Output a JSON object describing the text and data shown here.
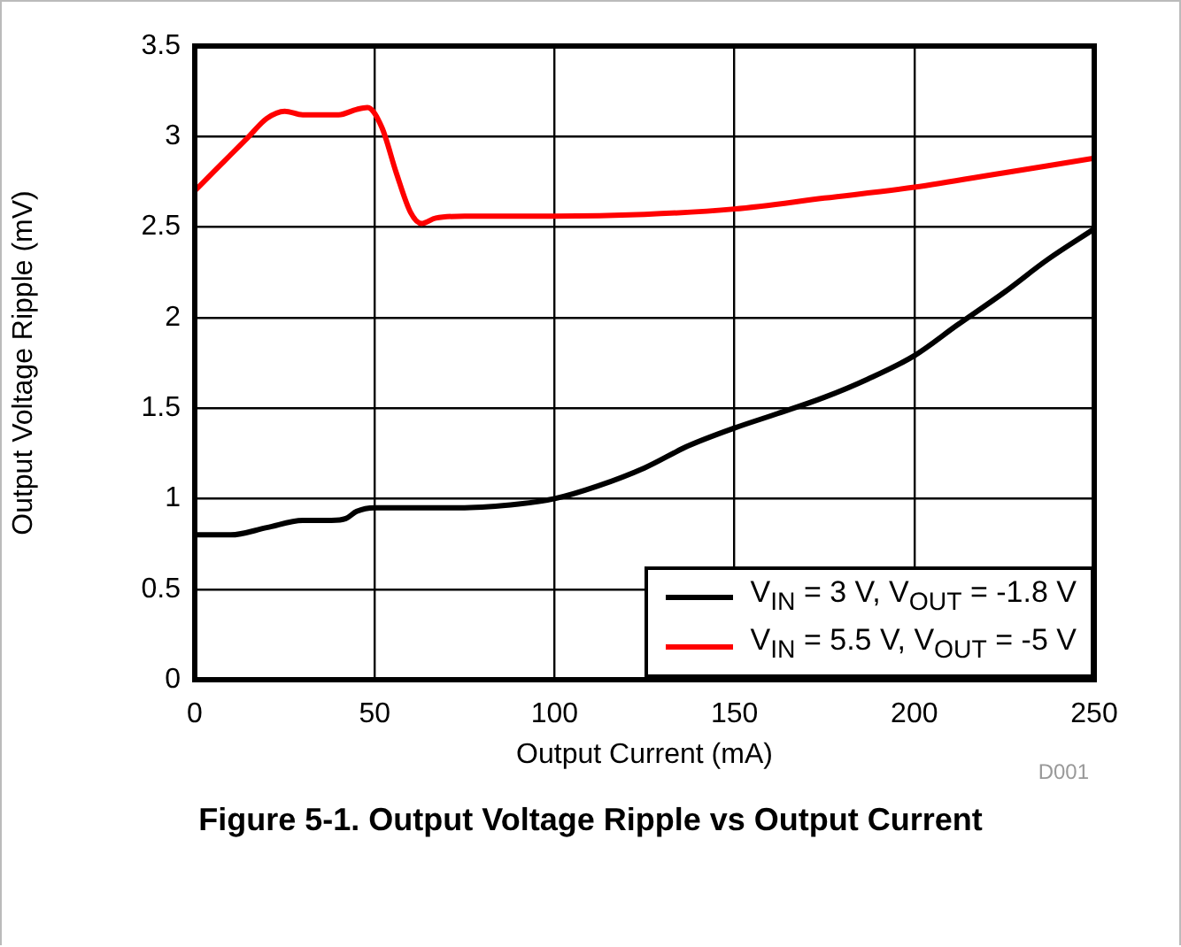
{
  "chart_data": {
    "type": "line",
    "title": "Figure 5-1. Output Voltage Ripple vs Output Current",
    "xlabel": "Output Current (mA)",
    "ylabel": "Output Voltage Ripple (mV)",
    "annotations": [
      "D001"
    ],
    "xlim": [
      0,
      250
    ],
    "xticks": [
      0,
      50,
      100,
      150,
      200,
      250
    ],
    "ylim": [
      0,
      3.5
    ],
    "yticks": [
      0,
      0.5,
      1,
      1.5,
      2,
      2.5,
      3,
      3.5
    ],
    "grid": true,
    "legend": "bottom right",
    "marker": "none",
    "line_style": "solid",
    "series": [
      {
        "name": "V$_{IN}$ = 3 V, V$_{OUT}$ = -1.8 V",
        "color": "#000000",
        "x": [
          0,
          10,
          20,
          30,
          38,
          42,
          45,
          50,
          75,
          90,
          100,
          112,
          125,
          137,
          150,
          162,
          175,
          187,
          200,
          212,
          225,
          237,
          250
        ],
        "values": [
          0.8,
          0.8,
          0.84,
          0.88,
          0.88,
          0.89,
          0.93,
          0.95,
          0.95,
          0.97,
          1.0,
          1.07,
          1.17,
          1.29,
          1.39,
          1.47,
          1.56,
          1.66,
          1.79,
          1.96,
          2.14,
          2.32,
          2.49
        ]
      },
      {
        "name": "V$_{IN}$ = 5.5 V, V$_{OUT}$ = -5 V",
        "color": "#ff0000",
        "x": [
          0,
          5,
          10,
          15,
          20,
          25,
          30,
          35,
          40,
          45,
          48,
          52,
          56,
          60,
          63,
          67,
          75,
          100,
          125,
          150,
          175,
          200,
          225,
          250
        ],
        "values": [
          2.7,
          2.8,
          2.9,
          3.0,
          3.1,
          3.14,
          3.12,
          3.12,
          3.12,
          3.15,
          3.16,
          3.05,
          2.8,
          2.58,
          2.52,
          2.55,
          2.56,
          2.56,
          2.57,
          2.6,
          2.66,
          2.72,
          2.8,
          2.88
        ]
      }
    ]
  }
}
